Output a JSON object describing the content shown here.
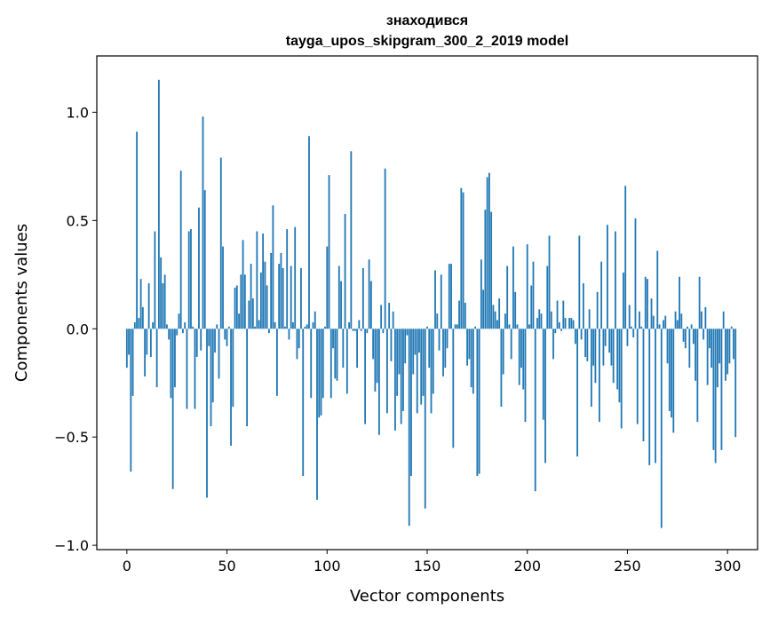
{
  "chart_data": {
    "type": "bar",
    "title_line1": "знаходився",
    "title_line2": "tayga_upos_skipgram_300_2_2019 model",
    "xlabel": "Vector components",
    "ylabel": "Components values",
    "xlim": [
      -15,
      315
    ],
    "ylim": [
      -1.02,
      1.26
    ],
    "xticks": [
      0,
      50,
      100,
      150,
      200,
      250,
      300
    ],
    "xtick_labels": [
      "0",
      "50",
      "100",
      "150",
      "200",
      "250",
      "300"
    ],
    "yticks": [
      -1.0,
      -0.5,
      0.0,
      0.5,
      1.0
    ],
    "ytick_labels": [
      "−1.0",
      "−0.5",
      "0.0",
      "0.5",
      "1.0"
    ],
    "bar_color": "#1f77b4",
    "grid": false,
    "values": [
      -0.18,
      -0.12,
      -0.66,
      -0.31,
      0.03,
      0.91,
      0.05,
      0.23,
      0.1,
      -0.22,
      -0.12,
      0.21,
      -0.13,
      0.03,
      0.45,
      -0.27,
      1.15,
      0.33,
      0.21,
      0.25,
      0.02,
      -0.05,
      -0.32,
      -0.74,
      -0.27,
      -0.03,
      0.07,
      0.73,
      -0.02,
      0.03,
      -0.37,
      0.45,
      0.46,
      0.01,
      -0.37,
      -0.13,
      0.56,
      -0.1,
      0.98,
      0.64,
      -0.78,
      -0.08,
      -0.45,
      -0.34,
      -0.11,
      0.02,
      -0.23,
      0.79,
      0.38,
      -0.05,
      -0.08,
      0.01,
      -0.54,
      -0.36,
      0.19,
      0.2,
      0.07,
      0.25,
      0.41,
      0.25,
      -0.45,
      0.13,
      0.3,
      0.14,
      0.01,
      0.45,
      0.04,
      0.26,
      0.44,
      0.31,
      0.2,
      -0.02,
      0.35,
      0.57,
      0.03,
      -0.31,
      0.3,
      0.35,
      0.28,
      0.01,
      0.46,
      -0.05,
      0.29,
      0.03,
      0.47,
      -0.14,
      -0.09,
      0.28,
      -0.68,
      0.01,
      0.02,
      0.89,
      -0.32,
      0.03,
      0.08,
      -0.79,
      -0.41,
      -0.4,
      -0.32,
      0.01,
      0.38,
      0.71,
      -0.32,
      -0.09,
      -0.23,
      -0.24,
      0.29,
      0.22,
      -0.18,
      0.53,
      -0.3,
      0.03,
      0.82,
      -0.01,
      -0.01,
      -0.18,
      0.04,
      -0.01,
      0.28,
      -0.44,
      -0.02,
      0.32,
      0.22,
      -0.14,
      -0.29,
      -0.25,
      -0.49,
      0.11,
      -0.02,
      0.74,
      -0.39,
      0.12,
      -0.15,
      0.08,
      -0.47,
      -0.31,
      -0.21,
      -0.44,
      -0.38,
      -0.16,
      -0.03,
      -0.91,
      -0.68,
      -0.21,
      -0.12,
      -0.39,
      -0.11,
      -0.35,
      -0.31,
      -0.83,
      0.01,
      -0.18,
      -0.39,
      -0.3,
      0.27,
      0.07,
      -0.1,
      0.25,
      -0.22,
      -0.18,
      -0.09,
      0.3,
      0.3,
      -0.55,
      0.02,
      0.02,
      0.13,
      0.65,
      0.63,
      0.12,
      -0.17,
      -0.14,
      -0.27,
      -0.3,
      0.01,
      -0.68,
      -0.67,
      0.32,
      0.18,
      0.55,
      0.7,
      0.72,
      0.54,
      0.11,
      0.08,
      0.04,
      0.14,
      -0.36,
      -0.21,
      0.07,
      0.29,
      0.02,
      -0.14,
      0.38,
      0.17,
      0.02,
      -0.26,
      -0.18,
      -0.28,
      -0.43,
      0.39,
      0.02,
      0.2,
      0.31,
      -0.75,
      0.05,
      0.09,
      0.07,
      -0.42,
      -0.62,
      0.29,
      0.43,
      0.08,
      -0.14,
      -0.02,
      0.13,
      0.03,
      -0.01,
      0.13,
      0.05,
      0.0,
      0.05,
      0.05,
      0.04,
      -0.07,
      -0.59,
      0.43,
      -0.05,
      0.21,
      -0.13,
      -0.15,
      0.09,
      -0.36,
      -0.17,
      -0.25,
      0.17,
      -0.43,
      0.31,
      -0.17,
      -0.08,
      0.48,
      -0.11,
      -0.17,
      -0.25,
      0.45,
      -0.28,
      -0.34,
      -0.46,
      0.26,
      0.66,
      -0.08,
      0.11,
      0.01,
      -0.04,
      0.51,
      -0.44,
      0.08,
      0.01,
      -0.52,
      0.24,
      0.23,
      -0.63,
      0.14,
      0.06,
      -0.62,
      0.36,
      0.02,
      -0.92,
      0.04,
      0.06,
      -0.16,
      -0.38,
      -0.41,
      -0.48,
      0.08,
      0.04,
      0.24,
      0.07,
      -0.06,
      -0.09,
      0.01,
      -0.18,
      0.02,
      -0.07,
      -0.24,
      -0.43,
      0.24,
      0.08,
      -0.05,
      0.1,
      -0.26,
      -0.09,
      -0.18,
      -0.56,
      -0.62,
      -0.27,
      -0.16,
      -0.56,
      0.08,
      -0.24,
      -0.21,
      -0.16,
      0.01,
      -0.14,
      -0.5
    ]
  }
}
